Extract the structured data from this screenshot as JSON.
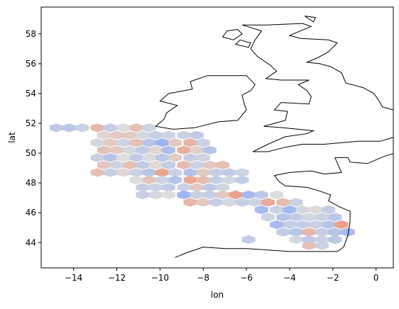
{
  "chart_data": {
    "type": "hexbin",
    "title": "",
    "xlabel": "lon",
    "ylabel": "lat",
    "xlim": [
      -15.5,
      0.8
    ],
    "ylim": [
      42.3,
      59.8
    ],
    "xticks": [
      -14,
      -12,
      -10,
      -8,
      -6,
      -4,
      -2,
      0
    ],
    "xtick_labels": [
      "−14",
      "−12",
      "−10",
      "−8",
      "−6",
      "−4",
      "−2",
      "0"
    ],
    "yticks": [
      44,
      46,
      48,
      50,
      52,
      54,
      56,
      58
    ],
    "ytick_labels": [
      "44",
      "46",
      "48",
      "50",
      "52",
      "54",
      "56",
      "58"
    ],
    "grid": false,
    "legend": "none",
    "colormap": "coolwarm",
    "colors": {
      "low": "#7b9ff9",
      "mid": "#dddddd",
      "high": "#f08a6c",
      "coast": "#000000"
    },
    "cells": [
      {
        "lon": -14.8,
        "lat": 51.7,
        "v": 0.35
      },
      {
        "lon": -14.2,
        "lat": 51.7,
        "v": 0.32
      },
      {
        "lon": -13.6,
        "lat": 51.7,
        "v": 0.4
      },
      {
        "lon": -12.9,
        "lat": 51.7,
        "v": 0.72
      },
      {
        "lon": -12.3,
        "lat": 51.7,
        "v": 0.36
      },
      {
        "lon": -11.7,
        "lat": 51.7,
        "v": 0.5
      },
      {
        "lon": -11.1,
        "lat": 51.7,
        "v": 0.68
      },
      {
        "lon": -10.5,
        "lat": 51.7,
        "v": 0.42
      },
      {
        "lon": -12.6,
        "lat": 51.2,
        "v": 0.55
      },
      {
        "lon": -12.0,
        "lat": 51.2,
        "v": 0.62
      },
      {
        "lon": -11.4,
        "lat": 51.2,
        "v": 0.6
      },
      {
        "lon": -10.8,
        "lat": 51.2,
        "v": 0.45
      },
      {
        "lon": -10.2,
        "lat": 51.2,
        "v": 0.38
      },
      {
        "lon": -9.6,
        "lat": 51.2,
        "v": 0.42
      },
      {
        "lon": -8.9,
        "lat": 51.2,
        "v": 0.4
      },
      {
        "lon": -8.3,
        "lat": 51.2,
        "v": 0.35
      },
      {
        "lon": -12.9,
        "lat": 50.7,
        "v": 0.45
      },
      {
        "lon": -12.3,
        "lat": 50.7,
        "v": 0.62
      },
      {
        "lon": -11.7,
        "lat": 50.7,
        "v": 0.42
      },
      {
        "lon": -11.1,
        "lat": 50.7,
        "v": 0.68
      },
      {
        "lon": -10.5,
        "lat": 50.7,
        "v": 0.3
      },
      {
        "lon": -9.9,
        "lat": 50.7,
        "v": 0.18
      },
      {
        "lon": -9.3,
        "lat": 50.7,
        "v": 0.62
      },
      {
        "lon": -8.6,
        "lat": 50.7,
        "v": 0.75
      },
      {
        "lon": -8.0,
        "lat": 50.7,
        "v": 0.4
      },
      {
        "lon": -12.6,
        "lat": 50.2,
        "v": 0.66
      },
      {
        "lon": -12.0,
        "lat": 50.2,
        "v": 0.62
      },
      {
        "lon": -11.4,
        "lat": 50.2,
        "v": 0.45
      },
      {
        "lon": -10.8,
        "lat": 50.2,
        "v": 0.35
      },
      {
        "lon": -10.2,
        "lat": 50.2,
        "v": 0.55
      },
      {
        "lon": -9.6,
        "lat": 50.2,
        "v": 0.25
      },
      {
        "lon": -8.9,
        "lat": 50.2,
        "v": 0.78
      },
      {
        "lon": -8.3,
        "lat": 50.2,
        "v": 0.58
      },
      {
        "lon": -7.7,
        "lat": 50.2,
        "v": 0.3
      },
      {
        "lon": -12.9,
        "lat": 49.7,
        "v": 0.4
      },
      {
        "lon": -12.3,
        "lat": 49.7,
        "v": 0.3
      },
      {
        "lon": -11.7,
        "lat": 49.7,
        "v": 0.5
      },
      {
        "lon": -11.1,
        "lat": 49.7,
        "v": 0.35
      },
      {
        "lon": -10.5,
        "lat": 49.7,
        "v": 0.48
      },
      {
        "lon": -9.9,
        "lat": 49.7,
        "v": 0.33
      },
      {
        "lon": -9.3,
        "lat": 49.7,
        "v": 0.6
      },
      {
        "lon": -8.6,
        "lat": 49.7,
        "v": 0.38
      },
      {
        "lon": -8.0,
        "lat": 49.7,
        "v": 0.42
      },
      {
        "lon": -12.6,
        "lat": 49.2,
        "v": 0.64
      },
      {
        "lon": -12.0,
        "lat": 49.2,
        "v": 0.42
      },
      {
        "lon": -11.4,
        "lat": 49.2,
        "v": 0.68
      },
      {
        "lon": -10.8,
        "lat": 49.2,
        "v": 0.35
      },
      {
        "lon": -10.2,
        "lat": 49.2,
        "v": 0.52
      },
      {
        "lon": -9.6,
        "lat": 49.2,
        "v": 0.38
      },
      {
        "lon": -8.9,
        "lat": 49.2,
        "v": 0.7
      },
      {
        "lon": -8.3,
        "lat": 49.2,
        "v": 0.4
      },
      {
        "lon": -7.7,
        "lat": 49.2,
        "v": 0.62
      },
      {
        "lon": -7.1,
        "lat": 49.2,
        "v": 0.68
      },
      {
        "lon": -12.9,
        "lat": 48.7,
        "v": 0.68
      },
      {
        "lon": -12.3,
        "lat": 48.7,
        "v": 0.38
      },
      {
        "lon": -11.7,
        "lat": 48.7,
        "v": 0.55
      },
      {
        "lon": -11.1,
        "lat": 48.7,
        "v": 0.4
      },
      {
        "lon": -10.5,
        "lat": 48.7,
        "v": 0.3
      },
      {
        "lon": -9.9,
        "lat": 48.7,
        "v": 0.84
      },
      {
        "lon": -9.3,
        "lat": 48.7,
        "v": 0.4
      },
      {
        "lon": -8.6,
        "lat": 48.7,
        "v": 0.28
      },
      {
        "lon": -8.0,
        "lat": 48.7,
        "v": 0.62
      },
      {
        "lon": -7.4,
        "lat": 48.7,
        "v": 0.38
      },
      {
        "lon": -6.8,
        "lat": 48.7,
        "v": 0.35
      },
      {
        "lon": -6.2,
        "lat": 48.7,
        "v": 0.42
      },
      {
        "lon": -11.1,
        "lat": 48.2,
        "v": 0.5
      },
      {
        "lon": -10.5,
        "lat": 48.2,
        "v": 0.65
      },
      {
        "lon": -9.9,
        "lat": 48.2,
        "v": 0.42
      },
      {
        "lon": -9.3,
        "lat": 48.2,
        "v": 0.3
      },
      {
        "lon": -8.6,
        "lat": 48.2,
        "v": 0.82
      },
      {
        "lon": -8.0,
        "lat": 48.2,
        "v": 0.7
      },
      {
        "lon": -7.4,
        "lat": 48.2,
        "v": 0.38
      },
      {
        "lon": -6.8,
        "lat": 48.2,
        "v": 0.45
      },
      {
        "lon": -6.2,
        "lat": 48.2,
        "v": 0.36
      },
      {
        "lon": -10.8,
        "lat": 47.7,
        "v": 0.38
      },
      {
        "lon": -10.2,
        "lat": 47.7,
        "v": 0.42
      },
      {
        "lon": -9.6,
        "lat": 47.7,
        "v": 0.36
      },
      {
        "lon": -8.9,
        "lat": 47.7,
        "v": 0.4
      },
      {
        "lon": -8.3,
        "lat": 47.7,
        "v": 0.62
      },
      {
        "lon": -7.7,
        "lat": 47.7,
        "v": 0.35
      },
      {
        "lon": -7.1,
        "lat": 47.7,
        "v": 0.44
      },
      {
        "lon": -10.8,
        "lat": 47.2,
        "v": 0.38
      },
      {
        "lon": -10.2,
        "lat": 47.2,
        "v": 0.45
      },
      {
        "lon": -9.6,
        "lat": 47.2,
        "v": 0.5
      },
      {
        "lon": -8.9,
        "lat": 47.2,
        "v": 0.18
      },
      {
        "lon": -8.3,
        "lat": 47.2,
        "v": 0.4
      },
      {
        "lon": -7.7,
        "lat": 47.2,
        "v": 0.38
      },
      {
        "lon": -7.1,
        "lat": 47.2,
        "v": 0.62
      },
      {
        "lon": -6.5,
        "lat": 47.2,
        "v": 0.86
      },
      {
        "lon": -5.9,
        "lat": 47.2,
        "v": 0.22
      },
      {
        "lon": -5.3,
        "lat": 47.2,
        "v": 0.34
      },
      {
        "lon": -4.6,
        "lat": 47.2,
        "v": 0.5
      },
      {
        "lon": -8.6,
        "lat": 46.7,
        "v": 0.72
      },
      {
        "lon": -8.0,
        "lat": 46.7,
        "v": 0.62
      },
      {
        "lon": -7.4,
        "lat": 46.7,
        "v": 0.38
      },
      {
        "lon": -6.8,
        "lat": 46.7,
        "v": 0.45
      },
      {
        "lon": -6.2,
        "lat": 46.7,
        "v": 0.38
      },
      {
        "lon": -5.6,
        "lat": 46.7,
        "v": 0.42
      },
      {
        "lon": -5.0,
        "lat": 46.7,
        "v": 0.8
      },
      {
        "lon": -4.3,
        "lat": 46.7,
        "v": 0.7
      },
      {
        "lon": -3.7,
        "lat": 46.7,
        "v": 0.4
      },
      {
        "lon": -5.3,
        "lat": 46.2,
        "v": 0.22
      },
      {
        "lon": -4.6,
        "lat": 46.2,
        "v": 0.4
      },
      {
        "lon": -4.0,
        "lat": 46.2,
        "v": 0.2
      },
      {
        "lon": -3.4,
        "lat": 46.2,
        "v": 0.45
      },
      {
        "lon": -2.8,
        "lat": 46.2,
        "v": 0.52
      },
      {
        "lon": -2.2,
        "lat": 46.2,
        "v": 0.38
      },
      {
        "lon": -5.0,
        "lat": 45.7,
        "v": 0.42
      },
      {
        "lon": -4.3,
        "lat": 45.7,
        "v": 0.3
      },
      {
        "lon": -3.7,
        "lat": 45.7,
        "v": 0.36
      },
      {
        "lon": -3.1,
        "lat": 45.7,
        "v": 0.45
      },
      {
        "lon": -2.5,
        "lat": 45.7,
        "v": 0.4
      },
      {
        "lon": -1.9,
        "lat": 45.7,
        "v": 0.32
      },
      {
        "lon": -4.6,
        "lat": 45.2,
        "v": 0.22
      },
      {
        "lon": -4.0,
        "lat": 45.2,
        "v": 0.38
      },
      {
        "lon": -3.4,
        "lat": 45.2,
        "v": 0.36
      },
      {
        "lon": -2.8,
        "lat": 45.2,
        "v": 0.4
      },
      {
        "lon": -2.2,
        "lat": 45.2,
        "v": 0.3
      },
      {
        "lon": -1.6,
        "lat": 45.2,
        "v": 0.87
      },
      {
        "lon": -4.3,
        "lat": 44.7,
        "v": 0.36
      },
      {
        "lon": -3.7,
        "lat": 44.7,
        "v": 0.3
      },
      {
        "lon": -3.1,
        "lat": 44.7,
        "v": 0.74
      },
      {
        "lon": -2.5,
        "lat": 44.7,
        "v": 0.38
      },
      {
        "lon": -1.9,
        "lat": 44.7,
        "v": 0.3
      },
      {
        "lon": -1.3,
        "lat": 44.7,
        "v": 0.22
      },
      {
        "lon": -5.9,
        "lat": 44.2,
        "v": 0.36
      },
      {
        "lon": -3.7,
        "lat": 44.2,
        "v": 0.45
      },
      {
        "lon": -3.1,
        "lat": 44.2,
        "v": 0.35
      },
      {
        "lon": -2.5,
        "lat": 44.2,
        "v": 0.4
      },
      {
        "lon": -1.9,
        "lat": 44.2,
        "v": 0.32
      },
      {
        "lon": -3.1,
        "lat": 43.8,
        "v": 0.68
      },
      {
        "lon": -2.5,
        "lat": 43.8,
        "v": 0.4
      }
    ],
    "coastlines": [
      [
        [
          -6.2,
          58.6
        ],
        [
          -5.0,
          58.6
        ],
        [
          -3.4,
          58.7
        ],
        [
          -3.0,
          58.5
        ],
        [
          -4.0,
          57.9
        ],
        [
          -3.5,
          57.7
        ],
        [
          -2.2,
          57.6
        ],
        [
          -1.8,
          57.4
        ],
        [
          -2.2,
          56.8
        ],
        [
          -2.7,
          56.4
        ],
        [
          -3.2,
          56.1
        ],
        [
          -2.6,
          56.0
        ],
        [
          -2.1,
          55.8
        ],
        [
          -1.6,
          55.4
        ],
        [
          -1.4,
          54.7
        ],
        [
          -0.6,
          54.4
        ],
        [
          -0.1,
          54.0
        ],
        [
          0.1,
          53.6
        ],
        [
          0.3,
          53.1
        ],
        [
          0.8,
          52.9
        ],
        [
          1.6,
          52.7
        ],
        [
          1.7,
          52.2
        ],
        [
          1.2,
          51.8
        ],
        [
          1.4,
          51.3
        ],
        [
          0.9,
          51.1
        ],
        [
          0.2,
          50.8
        ],
        [
          -0.8,
          50.8
        ],
        [
          -1.6,
          50.7
        ],
        [
          -2.4,
          50.6
        ],
        [
          -3.4,
          50.6
        ],
        [
          -4.2,
          50.4
        ],
        [
          -5.0,
          50.1
        ],
        [
          -5.7,
          50.1
        ],
        [
          -5.0,
          50.6
        ],
        [
          -4.2,
          51.1
        ],
        [
          -3.2,
          51.3
        ],
        [
          -2.9,
          51.5
        ],
        [
          -4.3,
          51.7
        ],
        [
          -5.2,
          51.8
        ],
        [
          -4.2,
          52.2
        ],
        [
          -4.1,
          52.8
        ],
        [
          -4.7,
          52.9
        ],
        [
          -4.4,
          53.4
        ],
        [
          -3.1,
          53.3
        ],
        [
          -3.0,
          53.8
        ],
        [
          -3.2,
          54.2
        ],
        [
          -3.6,
          54.6
        ],
        [
          -3.1,
          54.9
        ],
        [
          -4.4,
          54.9
        ],
        [
          -5.1,
          55.0
        ],
        [
          -4.6,
          55.5
        ],
        [
          -4.9,
          55.9
        ],
        [
          -5.5,
          56.5
        ],
        [
          -5.8,
          57.0
        ],
        [
          -5.6,
          57.6
        ],
        [
          -5.3,
          58.2
        ],
        [
          -6.2,
          58.6
        ]
      ],
      [
        [
          -6.0,
          55.2
        ],
        [
          -5.6,
          54.6
        ],
        [
          -5.8,
          54.2
        ],
        [
          -6.2,
          53.9
        ],
        [
          -6.1,
          53.3
        ],
        [
          -6.0,
          52.9
        ],
        [
          -6.4,
          52.2
        ],
        [
          -7.3,
          52.1
        ],
        [
          -8.4,
          51.7
        ],
        [
          -9.4,
          51.6
        ],
        [
          -10.2,
          51.8
        ],
        [
          -9.8,
          52.3
        ],
        [
          -9.7,
          52.7
        ],
        [
          -9.2,
          53.2
        ],
        [
          -10.0,
          53.5
        ],
        [
          -9.6,
          54.0
        ],
        [
          -8.5,
          54.3
        ],
        [
          -8.6,
          54.8
        ],
        [
          -7.8,
          55.2
        ],
        [
          -7.0,
          55.2
        ],
        [
          -6.0,
          55.2
        ]
      ],
      [
        [
          0.8,
          50.8
        ],
        [
          1.6,
          50.9
        ],
        [
          1.6,
          50.3
        ],
        [
          0.4,
          49.8
        ],
        [
          -0.4,
          49.3
        ],
        [
          -1.2,
          49.4
        ],
        [
          -1.3,
          49.7
        ],
        [
          -1.9,
          49.7
        ],
        [
          -1.6,
          48.7
        ],
        [
          -2.4,
          48.6
        ],
        [
          -3.0,
          48.8
        ],
        [
          -4.0,
          48.7
        ],
        [
          -4.7,
          48.5
        ],
        [
          -4.5,
          48.1
        ],
        [
          -4.2,
          47.8
        ],
        [
          -3.2,
          47.7
        ],
        [
          -2.7,
          47.5
        ],
        [
          -2.1,
          47.2
        ],
        [
          -2.2,
          46.8
        ],
        [
          -1.7,
          46.4
        ],
        [
          -1.2,
          46.1
        ],
        [
          -1.2,
          45.4
        ],
        [
          -1.3,
          44.5
        ],
        [
          -1.5,
          43.7
        ],
        [
          -1.8,
          43.4
        ],
        [
          -3.0,
          43.4
        ],
        [
          -4.0,
          43.4
        ],
        [
          -5.0,
          43.5
        ],
        [
          -6.0,
          43.6
        ],
        [
          -7.0,
          43.6
        ],
        [
          -8.0,
          43.7
        ],
        [
          -8.8,
          43.3
        ],
        [
          -9.3,
          43.0
        ]
      ],
      [
        [
          -6.4,
          58.3
        ],
        [
          -6.9,
          58.2
        ],
        [
          -7.1,
          57.8
        ],
        [
          -6.6,
          57.6
        ],
        [
          -6.2,
          58.0
        ],
        [
          -6.4,
          58.3
        ]
      ],
      [
        [
          -6.3,
          57.6
        ],
        [
          -5.8,
          57.4
        ],
        [
          -5.9,
          57.1
        ],
        [
          -6.5,
          57.3
        ],
        [
          -6.3,
          57.6
        ]
      ],
      [
        [
          -3.3,
          59.2
        ],
        [
          -2.8,
          59.1
        ],
        [
          -2.9,
          58.8
        ],
        [
          -3.3,
          59.2
        ]
      ],
      [
        [
          -1.3,
          60.5
        ],
        [
          -1.0,
          60.3
        ],
        [
          -1.3,
          59.9
        ],
        [
          -1.5,
          60.3
        ],
        [
          -1.3,
          60.5
        ]
      ]
    ]
  }
}
